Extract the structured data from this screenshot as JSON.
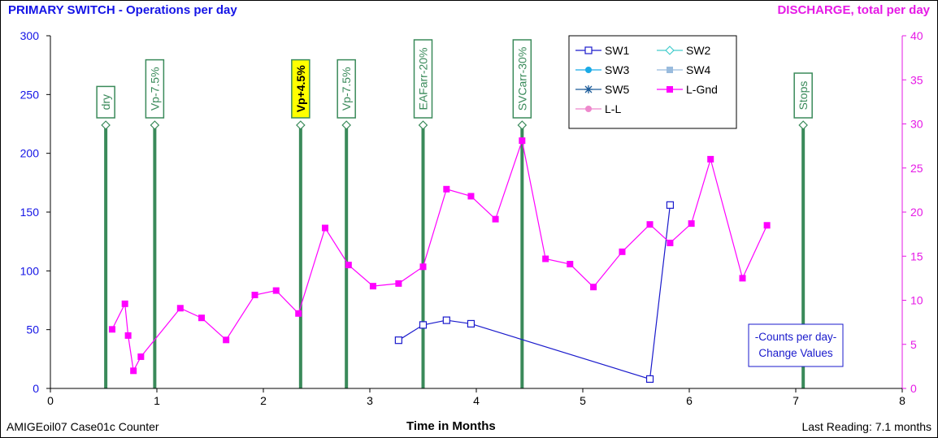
{
  "header": {
    "left_title": "PRIMARY SWITCH - Operations per day",
    "right_title": "DISCHARGE, total per day"
  },
  "footer": {
    "left": "AMIGEoil07 Case01c Counter",
    "center": "Time in Months",
    "right": "Last Reading: 7.1 months"
  },
  "chart_data": {
    "type": "line",
    "title": "PRIMARY SWITCH - Operations per day",
    "xlabel": "Time in Months",
    "ylabel_left": "PRIMARY SWITCH - Operations per day",
    "ylabel_right": "DISCHARGE, total per day",
    "xlim": [
      0,
      8
    ],
    "ylim_left": [
      0,
      300
    ],
    "ylim_right": [
      0,
      40
    ],
    "x_ticks": [
      "0",
      "1",
      "2",
      "3",
      "4",
      "5",
      "6",
      "7",
      "8"
    ],
    "y_ticks_left": [
      "0",
      "50",
      "100",
      "150",
      "200",
      "250",
      "300"
    ],
    "y_ticks_right": [
      "0",
      "5",
      "10",
      "15",
      "20",
      "25",
      "30",
      "35",
      "40"
    ],
    "grid": false,
    "legend_position": "top-right",
    "legend": [
      "SW1",
      "SW2",
      "SW3",
      "SW4",
      "SW5",
      "L-Gnd",
      "L-L"
    ],
    "colors": {
      "left_axis": "#1414e6",
      "right_axis": "#e619e6",
      "sw1": "#1a1acc",
      "sw2": "#44cccc",
      "sw3": "#1aaae6",
      "sw4": "#99bbdd",
      "sw5": "#1a5a99",
      "lgnd": "#ff00ff",
      "ll": "#ee88cc",
      "event_line": "#3a8a5a",
      "highlight_fill": "#ffff00"
    },
    "series": [
      {
        "name": "SW1",
        "axis": "left",
        "x": [
          3.27,
          3.5,
          3.72,
          3.95,
          5.63,
          5.82
        ],
        "y": [
          41,
          54,
          58,
          55,
          8,
          156
        ]
      },
      {
        "name": "L-Gnd",
        "axis": "right",
        "x": [
          0.58,
          0.7,
          0.73,
          0.78,
          0.85,
          1.22,
          1.42,
          1.65,
          1.92,
          2.12,
          2.33,
          2.58,
          2.8,
          3.03,
          3.27,
          3.5,
          3.72,
          3.95,
          4.18,
          4.43,
          4.65,
          4.88,
          5.1,
          5.37,
          5.63,
          5.82,
          6.02,
          6.2,
          6.5,
          6.73
        ],
        "y": [
          6.7,
          9.6,
          6.0,
          2.0,
          3.6,
          9.1,
          8.0,
          5.5,
          10.6,
          11.1,
          8.5,
          18.2,
          14.0,
          11.6,
          11.9,
          13.8,
          22.6,
          21.8,
          19.2,
          28.1,
          14.7,
          14.1,
          11.5,
          15.5,
          18.6,
          16.5,
          18.7,
          26.0,
          12.5,
          18.5
        ]
      }
    ],
    "events": [
      {
        "label": "dry",
        "x": 0.52
      },
      {
        "label": "Vp-7.5%",
        "x": 0.98
      },
      {
        "label": "Vp+4.5%",
        "x": 2.35,
        "highlight": true
      },
      {
        "label": "Vp-7.5%",
        "x": 2.78
      },
      {
        "label": "EAFarr-20%",
        "x": 3.5
      },
      {
        "label": "SVCarr-30%",
        "x": 4.43
      },
      {
        "label": "Stops",
        "x": 7.07
      }
    ],
    "annotation": [
      "-Counts per day-",
      "Change Values"
    ]
  }
}
